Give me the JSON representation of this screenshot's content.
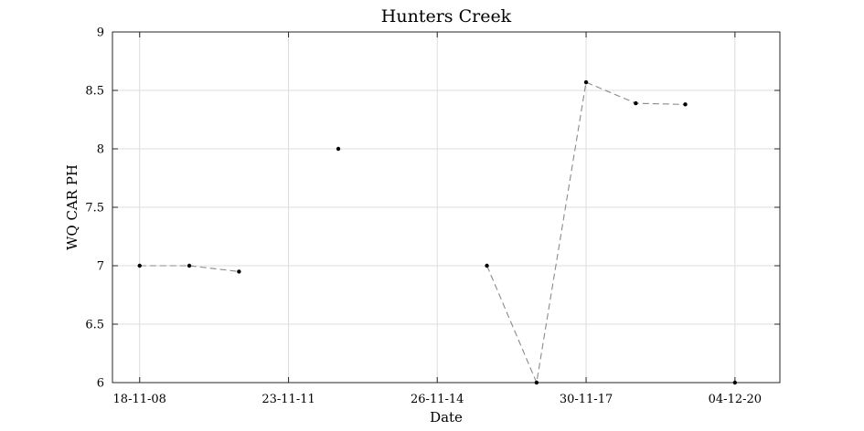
{
  "chart_data": {
    "type": "line",
    "title": "Hunters Creek",
    "xlabel": "Date",
    "ylabel": "WQ CAR PH",
    "x_tick_labels": [
      "18-11-08",
      "23-11-11",
      "26-11-14",
      "30-11-17",
      "04-12-20"
    ],
    "x_tick_dates": [
      "2008-11-18",
      "2011-11-23",
      "2014-11-26",
      "2017-11-30",
      "2020-12-04"
    ],
    "xlim": [
      "2008-05-01",
      "2021-11-01"
    ],
    "ylim": [
      6,
      9
    ],
    "y_ticks": [
      6,
      6.5,
      7,
      7.5,
      8,
      8.5,
      9
    ],
    "grid": true,
    "line_color": "#8a8a8a",
    "marker_color": "#000000",
    "series": [
      {
        "segments": [
          [
            {
              "x": "2008-11-18",
              "y": 7.0
            },
            {
              "x": "2009-11-20",
              "y": 7.0
            },
            {
              "x": "2010-11-22",
              "y": 6.95
            }
          ],
          [
            {
              "x": "2012-11-25",
              "y": 8.0
            }
          ],
          [
            {
              "x": "2015-11-28",
              "y": 7.0
            },
            {
              "x": "2016-11-29",
              "y": 6.0
            },
            {
              "x": "2017-11-30",
              "y": 8.57
            },
            {
              "x": "2018-12-02",
              "y": 8.39
            },
            {
              "x": "2019-12-03",
              "y": 8.38
            }
          ],
          [
            {
              "x": "2020-12-04",
              "y": 6.0
            }
          ]
        ]
      }
    ]
  }
}
